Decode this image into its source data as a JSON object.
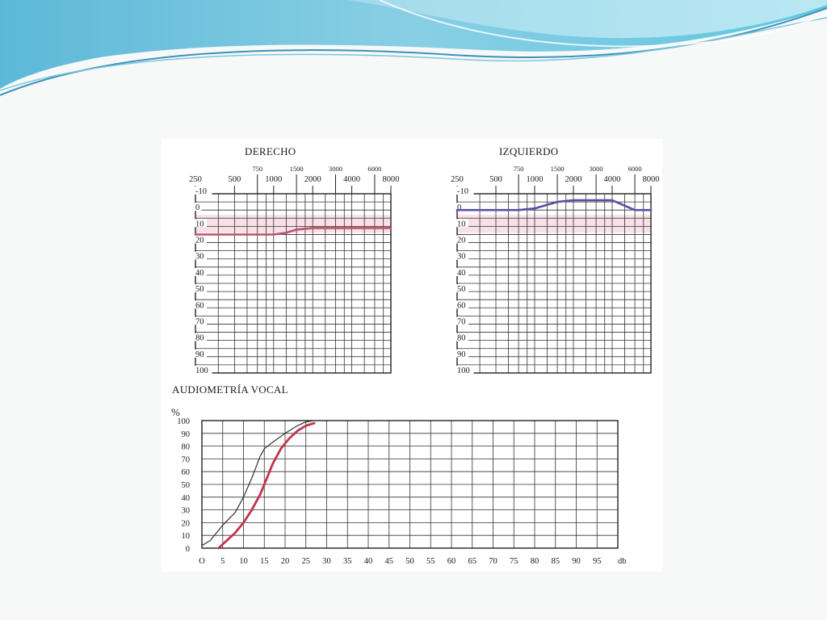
{
  "chart_data": [
    {
      "type": "line",
      "title": "DERECHO",
      "x_major_ticks": [
        "250",
        "500",
        "1000",
        "2000",
        "4000",
        "8000"
      ],
      "x_minor_ticks": [
        "750",
        "1500",
        "3000",
        "6000"
      ],
      "y_ticks": [
        "-10",
        "0",
        "10",
        "20",
        "30",
        "40",
        "50",
        "60",
        "70",
        "80",
        "90",
        "100"
      ],
      "ylim": [
        -10,
        100
      ],
      "y_inverted": true,
      "grid": true,
      "series": [
        {
          "color": "#c0506a",
          "x": [
            250,
            500,
            750,
            1000,
            1250,
            1500,
            2000,
            3000,
            4000,
            6000,
            8000
          ],
          "y": [
            15,
            15,
            15,
            15,
            14,
            12,
            11,
            11,
            11,
            11,
            11
          ]
        }
      ],
      "shaded_band_db": [
        3,
        14
      ]
    },
    {
      "type": "line",
      "title": "IZQUIERDO",
      "x_major_ticks": [
        "250",
        "500",
        "1000",
        "2000",
        "4000",
        "8000"
      ],
      "x_minor_ticks": [
        "750",
        "1500",
        "3000",
        "6000"
      ],
      "y_ticks": [
        "-10",
        "0",
        "10",
        "20",
        "30",
        "40",
        "50",
        "60",
        "70",
        "80",
        "90",
        "100"
      ],
      "ylim": [
        -10,
        100
      ],
      "y_inverted": true,
      "grid": true,
      "series": [
        {
          "color": "#5a4fa6",
          "x": [
            250,
            500,
            750,
            1000,
            1500,
            2000,
            3000,
            4000,
            6000,
            8000
          ],
          "y": [
            0,
            0,
            0,
            -1,
            -5,
            -6,
            -6,
            -6,
            0,
            0
          ]
        }
      ],
      "shaded_band_db": [
        3,
        14
      ]
    },
    {
      "type": "line",
      "title": "AUDIOMETRÍA VOCAL",
      "xlabel": "db",
      "ylabel": "%",
      "x_ticks": [
        "O",
        "5",
        "10",
        "15",
        "20",
        "25",
        "30",
        "35",
        "40",
        "45",
        "50",
        "55",
        "60",
        "65",
        "70",
        "75",
        "80",
        "85",
        "90",
        "95"
      ],
      "y_ticks": [
        "0",
        "10",
        "20",
        "30",
        "40",
        "50",
        "60",
        "70",
        "80",
        "90",
        "100"
      ],
      "xlim": [
        0,
        100
      ],
      "ylim": [
        0,
        100
      ],
      "grid": true,
      "series": [
        {
          "color": "#333333",
          "x": [
            0,
            2,
            5,
            8,
            10,
            12,
            14,
            15,
            17,
            20,
            23,
            25,
            27
          ],
          "y": [
            2,
            6,
            18,
            28,
            40,
            55,
            72,
            78,
            83,
            90,
            96,
            99,
            100
          ]
        },
        {
          "color": "#c0344e",
          "x": [
            4,
            6,
            8,
            10,
            12,
            14,
            15,
            17,
            19,
            21,
            23,
            25,
            27
          ],
          "y": [
            0,
            6,
            12,
            20,
            30,
            42,
            50,
            66,
            78,
            86,
            92,
            96,
            98
          ]
        }
      ]
    }
  ],
  "colors": {
    "wave_dark": "#4aa8c8",
    "wave_light": "#9fd8e8",
    "band": "#f3d3de"
  }
}
